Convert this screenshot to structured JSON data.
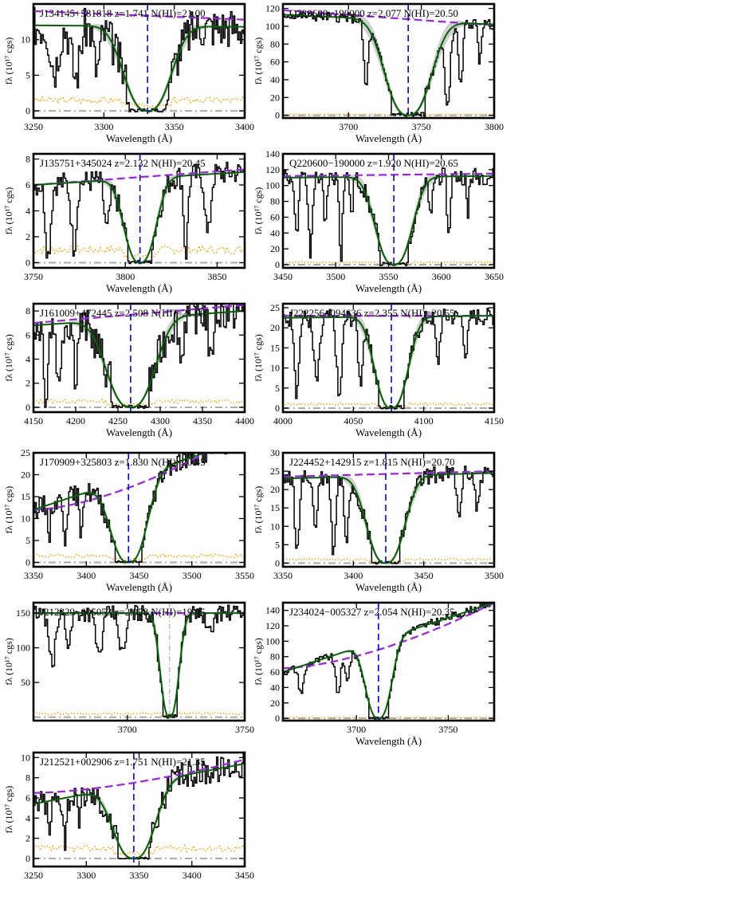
{
  "colors": {
    "spectrum": "#000000",
    "fit": "#006400",
    "fit_band": "#d0d0d0",
    "continuum": "#a020f0",
    "error": "#ffa500",
    "zero": "#a9a9a9",
    "center": "#0000ff",
    "center_alt": "#a9a9a9"
  },
  "chart_data": [
    {
      "type": "line",
      "title": "J134145+581818 z=1.741 N(HI)=21.00",
      "xlabel": "Wavelength (Å)",
      "ylabel": "fλ (10¹⁷ cgs)",
      "xlim": [
        3250,
        3400
      ],
      "ylim": [
        -1,
        15
      ],
      "xticks": [
        3250,
        3300,
        3350,
        3400
      ],
      "yticks": [
        0,
        5,
        10
      ],
      "center": 3331,
      "center_style": "blue",
      "cont": [
        14.0,
        12.8
      ],
      "fit_amp": 11.8,
      "fit_width": 21,
      "fit_cont": [
        12.0,
        11.8
      ],
      "absorbers": [
        [
          3265,
          0.5,
          4
        ],
        [
          3280,
          0.6,
          4
        ],
        [
          3295,
          0.5,
          3
        ]
      ],
      "noise": 0.25,
      "seed": 3,
      "err": 1.5
    },
    {
      "type": "line",
      "title": "Q220600−190000 z=2.077 N(HI)=20.50",
      "xlabel": "Wavelength (Å)",
      "ylabel": "fλ (10¹⁷ cgs)",
      "xlim": [
        3655,
        3800
      ],
      "ylim": [
        -3,
        125
      ],
      "xticks": [
        3700,
        3750,
        3800
      ],
      "yticks": [
        0,
        20,
        40,
        60,
        80,
        100,
        120
      ],
      "center": 3741,
      "center_style": "blue",
      "cont": [
        118,
        101
      ],
      "fit_amp": 112,
      "fit_width": 20,
      "fit_cont": [
        113,
        102
      ],
      "absorbers": [
        [
          3712,
          0.7,
          2
        ],
        [
          3768,
          0.9,
          2.5
        ],
        [
          3777,
          0.7,
          2
        ],
        [
          3790,
          0.4,
          1.5
        ]
      ],
      "noise": 0.05,
      "seed": 5,
      "err": 1
    },
    {
      "type": "line",
      "title": "J135751+345024 z=2.132 N(HI)=20.45",
      "xlabel": "Wavelength (Å)",
      "ylabel": "fλ (10¹⁷ cgs)",
      "xlim": [
        3750,
        3865
      ],
      "ylim": [
        -0.4,
        8.4
      ],
      "xticks": [
        3750,
        3800,
        3850
      ],
      "yticks": [
        0,
        2,
        4,
        6,
        8
      ],
      "center": 3808,
      "center_style": "blue",
      "cont": [
        6.0,
        7.2
      ],
      "fit_amp": 6.0,
      "fit_width": 11,
      "fit_cont": [
        6.0,
        7.0
      ],
      "absorbers": [
        [
          3758,
          0.9,
          2
        ],
        [
          3772,
          0.8,
          2
        ],
        [
          3790,
          0.6,
          2
        ],
        [
          3833,
          0.9,
          1.5
        ],
        [
          3845,
          0.7,
          2
        ]
      ],
      "noise": 0.15,
      "seed": 7,
      "err": 1
    },
    {
      "type": "line",
      "title": "Q220600−190000 z=1.920 N(HI)=20.65",
      "xlabel": "Wavelength (Å)",
      "ylabel": "fλ (10¹⁷ cgs)",
      "xlim": [
        3450,
        3650
      ],
      "ylim": [
        -4,
        140
      ],
      "xticks": [
        3450,
        3500,
        3550,
        3600,
        3650
      ],
      "yticks": [
        0,
        20,
        40,
        60,
        80,
        100,
        120,
        140
      ],
      "center": 3555,
      "center_style": "blue",
      "cont": [
        112,
        115
      ],
      "fit_amp": 110,
      "fit_width": 22,
      "fit_cont": [
        110,
        112
      ],
      "absorbers": [
        [
          3463,
          0.7,
          2
        ],
        [
          3476,
          0.9,
          2.5
        ],
        [
          3490,
          0.6,
          2
        ],
        [
          3505,
          0.9,
          2
        ],
        [
          3515,
          0.5,
          1.5
        ],
        [
          3590,
          0.5,
          2
        ],
        [
          3607,
          0.7,
          2
        ],
        [
          3625,
          0.5,
          1.5
        ]
      ],
      "noise": 0.1,
      "seed": 11,
      "err": 3
    },
    {
      "type": "line",
      "title": "J161009+472445 z=2.508 N(HI)=21.00",
      "xlabel": "Wavelength (Å)",
      "ylabel": "fλ (10¹⁷ cgs)",
      "xlim": [
        4150,
        4400
      ],
      "ylim": [
        -0.4,
        8.6
      ],
      "xticks": [
        4150,
        4200,
        4250,
        4300,
        4350,
        4400
      ],
      "yticks": [
        0,
        2,
        4,
        6,
        8
      ],
      "center": 4265,
      "center_style": "blue",
      "cont": [
        7.0,
        8.5
      ],
      "fit_amp": 6.5,
      "fit_width": 36,
      "fit_cont": [
        6.8,
        8.0
      ],
      "absorbers": [
        [
          4165,
          0.9,
          3
        ],
        [
          4180,
          0.8,
          3
        ],
        [
          4200,
          0.6,
          3
        ],
        [
          4325,
          0.5,
          3
        ],
        [
          4360,
          0.6,
          3
        ]
      ],
      "noise": 0.25,
      "seed": 13,
      "err": 0.5
    },
    {
      "type": "line",
      "title": "J222256−094636 z=2.355 N(HI)=20.55",
      "xlabel": "Wavelength (Å)",
      "ylabel": "fλ (10¹⁷ cgs)",
      "xlim": [
        4000,
        4150
      ],
      "ylim": [
        -1,
        26
      ],
      "xticks": [
        4000,
        4050,
        4100,
        4150
      ],
      "yticks": [
        0,
        5,
        10,
        15,
        20,
        25
      ],
      "center": 4077,
      "center_style": "blue",
      "cont": [
        23,
        23
      ],
      "fit_amp": 22,
      "fit_width": 15,
      "fit_cont": [
        22.5,
        23
      ],
      "absorbers": [
        [
          4010,
          0.9,
          2
        ],
        [
          4024,
          0.7,
          3
        ],
        [
          4040,
          0.9,
          2.5
        ],
        [
          4055,
          0.7,
          2
        ],
        [
          4110,
          0.5,
          2
        ],
        [
          4130,
          0.4,
          2
        ]
      ],
      "noise": 0.1,
      "seed": 17,
      "err": 1
    },
    {
      "type": "line",
      "title": "J170909+325803 z=1.830 N(HI)=20.45",
      "xlabel": "Wavelength (Å)",
      "ylabel": "fλ (10¹⁷ cgs)",
      "xlim": [
        3350,
        3550
      ],
      "ylim": [
        -1,
        25
      ],
      "xticks": [
        3350,
        3400,
        3450,
        3500,
        3550
      ],
      "yticks": [
        0,
        5,
        10,
        15,
        20,
        25
      ],
      "center": 3440,
      "center_style": "blue",
      "cont": [
        12,
        30
      ],
      "fit_amp": 12,
      "fit_width": 22,
      "fit_cont": [
        12,
        28
      ],
      "absorbers": [
        [
          3365,
          0.5,
          2
        ],
        [
          3380,
          0.6,
          2
        ],
        [
          3395,
          0.5,
          2
        ]
      ],
      "noise": 0.2,
      "seed": 19,
      "err": 1.5
    },
    {
      "type": "line",
      "title": "J224452+142915 z=1.815 N(HI)=20.70",
      "xlabel": "Wavelength (Å)",
      "ylabel": "fλ (10¹⁷ cgs)",
      "xlim": [
        3350,
        3500
      ],
      "ylim": [
        -1,
        30
      ],
      "xticks": [
        3350,
        3400,
        3450,
        3500
      ],
      "yticks": [
        0,
        5,
        10,
        15,
        20,
        25,
        30
      ],
      "center": 3423,
      "center_style": "blue",
      "cont": [
        23.5,
        25
      ],
      "fit_amp": 23,
      "fit_width": 17,
      "fit_cont": [
        23,
        24.5
      ],
      "absorbers": [
        [
          3360,
          0.9,
          2
        ],
        [
          3373,
          0.6,
          2
        ],
        [
          3386,
          0.9,
          2
        ],
        [
          3395,
          0.7,
          2
        ],
        [
          3475,
          0.5,
          2
        ],
        [
          3488,
          0.4,
          2
        ]
      ],
      "noise": 0.1,
      "seed": 23,
      "err": 1
    },
    {
      "type": "line",
      "title": "J212329−005053 z=2.058 N(HI)=19.45",
      "xlabel": "",
      "ylabel": "fλ (10¹⁷ cgs)",
      "xlim": [
        3660,
        3750
      ],
      "ylim": [
        -5,
        165
      ],
      "xticks": [
        3700,
        3750
      ],
      "yticks": [
        50,
        100,
        150
      ],
      "center": 3718,
      "center_style": "gray",
      "cont": [
        150,
        150
      ],
      "fit_amp": 148,
      "fit_width": 5,
      "fit_cont": [
        150,
        150
      ],
      "absorbers": [
        [
          3668,
          0.5,
          2
        ],
        [
          3675,
          0.3,
          1.5
        ],
        [
          3688,
          0.4,
          2
        ],
        [
          3698,
          0.4,
          2
        ],
        [
          3735,
          0.2,
          2
        ]
      ],
      "noise": 0.08,
      "seed": 29,
      "err": 5
    },
    {
      "type": "line",
      "title": "J234024−005327 z=2.054 N(HI)=20.35",
      "xlabel": "Wavelength (Å)",
      "ylabel": "fλ (10¹⁷ cgs)",
      "xlim": [
        3660,
        3775
      ],
      "ylim": [
        -3,
        150
      ],
      "xticks": [
        3700,
        3750
      ],
      "yticks": [
        0,
        20,
        40,
        60,
        80,
        100,
        120,
        140
      ],
      "center": 3712,
      "center_style": "blue",
      "cont": [
        65,
        150
      ],
      "fit_amp": 65,
      "fit_width": 9,
      "fit_cont": [
        60,
        150
      ],
      "absorbers": [
        [
          3670,
          0.5,
          2
        ],
        [
          3690,
          0.6,
          2
        ],
        [
          3695,
          0.4,
          2
        ]
      ],
      "noise": 0.08,
      "seed": 31,
      "err": 1
    },
    {
      "type": "line",
      "title": "J212521+002906 z=1.751 N(HI)=21.35",
      "xlabel": "",
      "ylabel": "fλ (10¹⁷ cgs)",
      "xlim": [
        3250,
        3450
      ],
      "ylim": [
        -0.8,
        10.5
      ],
      "xticks": [
        3250,
        3300,
        3350,
        3400,
        3450
      ],
      "yticks": [
        0,
        2,
        4,
        6,
        8,
        10
      ],
      "center": 3345,
      "center_style": "blue",
      "cont": [
        6.5,
        9.8
      ],
      "fit_amp": 5.4,
      "fit_width": 25,
      "fit_cont": [
        5.4,
        9.4
      ],
      "absorbers": [
        [
          3265,
          0.6,
          2
        ],
        [
          3280,
          0.7,
          2
        ],
        [
          3293,
          0.5,
          2
        ]
      ],
      "noise": 0.25,
      "seed": 37,
      "err": 1
    }
  ]
}
